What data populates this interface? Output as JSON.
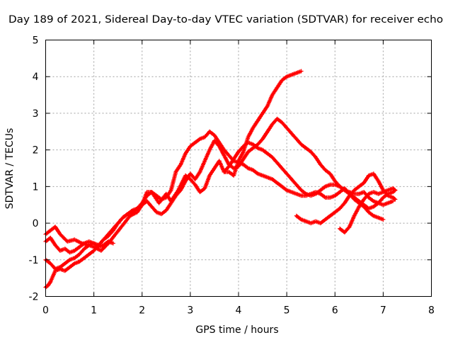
{
  "chart_data": {
    "type": "scatter",
    "title": "Day 189 of 2021, Sidereal Day-to-day VTEC variation (SDTVAR) for receiver echo",
    "xlabel": "GPS time / hours",
    "ylabel": "SDTVAR / TECUs",
    "xlim": [
      0,
      8
    ],
    "ylim": [
      -2,
      5
    ],
    "xticks": [
      "0",
      "1",
      "2",
      "3",
      "4",
      "5",
      "6",
      "7",
      "8"
    ],
    "yticks": [
      "-2",
      "-1",
      "0",
      "1",
      "2",
      "3",
      "4",
      "5"
    ],
    "grid": true,
    "marker": "plus",
    "color": "#ff0000",
    "series": [
      {
        "x": [
          0.0,
          0.1,
          0.2,
          0.3,
          0.45,
          0.6,
          0.75,
          0.9,
          1.0,
          1.15,
          1.3,
          1.45,
          1.6,
          1.75,
          1.9,
          2.0,
          2.1,
          2.2,
          2.35,
          2.5,
          2.6,
          2.75,
          2.9,
          3.0,
          3.1,
          3.2,
          3.3,
          3.4,
          3.5,
          3.6,
          3.7,
          3.8,
          3.9,
          4.0,
          4.1,
          4.2,
          4.3,
          4.4,
          4.5,
          4.6,
          4.7,
          4.8,
          4.9,
          5.0,
          5.1,
          5.2,
          5.3
        ],
        "y": [
          -0.3,
          -0.2,
          -0.1,
          -0.3,
          -0.5,
          -0.45,
          -0.55,
          -0.6,
          -0.65,
          -0.75,
          -0.55,
          -0.3,
          -0.05,
          0.2,
          0.3,
          0.5,
          0.85,
          0.85,
          0.55,
          0.8,
          0.6,
          0.9,
          1.3,
          1.2,
          1.05,
          0.85,
          0.95,
          1.3,
          1.5,
          1.7,
          1.4,
          1.4,
          1.3,
          1.7,
          1.95,
          2.35,
          2.6,
          2.8,
          3.0,
          3.2,
          3.5,
          3.7,
          3.9,
          4.0,
          4.05,
          4.1,
          4.15
        ]
      },
      {
        "x": [
          0.0,
          0.05,
          0.1,
          0.2,
          0.3,
          0.4,
          0.5,
          0.6,
          0.7,
          0.8,
          0.9,
          1.0,
          1.1,
          1.2,
          1.3,
          1.4,
          1.5,
          1.6,
          1.7,
          1.8,
          1.9,
          2.0,
          2.1,
          2.2,
          2.3,
          2.4,
          2.5,
          2.6,
          2.7,
          2.8,
          2.9,
          3.0,
          3.1,
          3.2,
          3.3,
          3.4,
          3.5,
          3.6,
          3.7,
          3.8,
          3.9,
          4.0,
          4.1,
          4.2,
          4.3,
          4.4,
          4.5,
          4.6,
          4.7,
          4.8,
          4.9,
          5.0,
          5.1,
          5.2,
          5.3,
          5.4,
          5.5,
          5.6,
          5.7,
          5.8,
          5.9,
          6.0,
          6.1,
          6.2,
          6.3,
          6.4,
          6.5,
          6.6,
          6.7,
          6.8,
          6.9,
          7.0
        ],
        "y": [
          -1.75,
          -1.7,
          -1.6,
          -1.3,
          -1.25,
          -1.3,
          -1.2,
          -1.1,
          -1.05,
          -0.95,
          -0.85,
          -0.75,
          -0.6,
          -0.45,
          -0.3,
          -0.15,
          0.0,
          0.15,
          0.25,
          0.3,
          0.4,
          0.55,
          0.75,
          0.85,
          0.75,
          0.65,
          0.7,
          0.9,
          1.4,
          1.6,
          1.9,
          2.1,
          2.2,
          2.3,
          2.35,
          2.5,
          2.4,
          2.2,
          2.0,
          1.85,
          1.7,
          1.65,
          1.6,
          1.5,
          1.45,
          1.35,
          1.3,
          1.25,
          1.2,
          1.1,
          1.0,
          0.9,
          0.85,
          0.8,
          0.75,
          0.75,
          0.8,
          0.85,
          0.8,
          0.7,
          0.7,
          0.75,
          0.85,
          0.95,
          0.8,
          0.65,
          0.55,
          0.45,
          0.3,
          0.2,
          0.15,
          0.1
        ]
      },
      {
        "x": [
          0.0,
          0.1,
          0.2,
          0.3,
          0.4,
          0.5,
          0.6,
          0.7,
          0.8,
          0.9,
          1.0,
          1.1,
          1.2,
          1.3,
          1.4,
          1.5,
          1.6,
          1.7,
          1.8,
          1.9,
          2.0,
          2.1,
          2.2,
          2.3,
          2.4,
          2.5,
          2.6,
          2.7,
          2.8,
          2.9,
          3.0,
          3.1,
          3.2,
          3.3,
          3.4,
          3.5,
          3.6,
          3.7,
          3.8,
          3.9,
          4.0,
          4.1,
          4.2,
          4.3,
          4.4,
          4.5,
          4.6,
          4.7,
          4.8,
          4.9,
          5.0,
          5.1,
          5.2,
          5.3,
          5.4,
          5.5,
          5.6,
          5.7,
          5.8,
          5.9,
          6.0,
          6.1,
          6.2,
          6.3,
          6.4,
          6.5,
          6.6,
          6.7,
          6.8,
          6.9,
          7.0,
          7.1,
          7.2
        ],
        "y": [
          -0.5,
          -0.4,
          -0.6,
          -0.75,
          -0.7,
          -0.8,
          -0.75,
          -0.65,
          -0.55,
          -0.5,
          -0.55,
          -0.6,
          -0.45,
          -0.35,
          -0.2,
          0.0,
          0.15,
          0.25,
          0.35,
          0.4,
          0.5,
          0.6,
          0.45,
          0.3,
          0.25,
          0.35,
          0.55,
          0.75,
          0.9,
          1.15,
          1.35,
          1.2,
          1.4,
          1.7,
          2.0,
          2.25,
          2.1,
          1.85,
          1.6,
          1.5,
          1.55,
          1.75,
          1.95,
          2.05,
          2.15,
          2.3,
          2.5,
          2.7,
          2.85,
          2.75,
          2.6,
          2.45,
          2.3,
          2.15,
          2.05,
          1.95,
          1.8,
          1.6,
          1.45,
          1.35,
          1.15,
          1.0,
          0.9,
          0.85,
          0.8,
          0.8,
          0.85,
          0.7,
          0.6,
          0.55,
          0.5,
          0.55,
          0.6
        ]
      },
      {
        "x": [
          0.0,
          0.1,
          0.2,
          0.3,
          0.4,
          0.5,
          0.6,
          0.7,
          0.8,
          0.9,
          1.0,
          1.1,
          1.2,
          1.3,
          1.4
        ],
        "y": [
          -1.0,
          -1.1,
          -1.25,
          -1.2,
          -1.1,
          -1.0,
          -0.95,
          -0.85,
          -0.7,
          -0.6,
          -0.55,
          -0.65,
          -0.6,
          -0.5,
          -0.55
        ]
      },
      {
        "x": [
          3.7,
          3.8,
          3.9,
          4.0,
          4.1,
          4.2,
          4.3,
          4.4,
          4.5,
          4.6,
          4.7,
          4.8,
          4.9,
          5.0,
          5.1,
          5.2,
          5.3,
          5.4,
          5.5,
          5.6,
          5.7,
          5.8,
          5.9,
          6.0,
          6.1,
          6.2,
          6.3,
          6.4,
          6.5,
          6.6,
          6.7,
          6.8,
          6.9,
          7.0,
          7.1,
          7.2,
          7.25
        ],
        "y": [
          1.4,
          1.55,
          1.75,
          1.95,
          2.1,
          2.2,
          2.15,
          2.05,
          2.0,
          1.9,
          1.8,
          1.65,
          1.5,
          1.35,
          1.2,
          1.05,
          0.9,
          0.8,
          0.75,
          0.8,
          0.9,
          1.0,
          1.05,
          1.05,
          1.0,
          0.9,
          0.8,
          0.7,
          0.6,
          0.5,
          0.4,
          0.45,
          0.55,
          0.7,
          0.8,
          0.85,
          0.9
        ]
      },
      {
        "x": [
          5.2,
          5.3,
          5.4,
          5.5,
          5.6,
          5.7,
          5.8,
          5.9,
          6.0,
          6.1,
          6.2,
          6.3,
          6.4,
          6.5,
          6.6,
          6.7,
          6.8,
          6.9,
          7.0,
          7.1,
          7.2,
          7.25
        ],
        "y": [
          0.2,
          0.1,
          0.05,
          0.0,
          0.05,
          0.0,
          0.1,
          0.2,
          0.3,
          0.4,
          0.55,
          0.75,
          0.9,
          1.0,
          1.1,
          1.3,
          1.35,
          1.15,
          0.9,
          0.75,
          0.7,
          0.65
        ]
      },
      {
        "x": [
          6.1,
          6.2,
          6.3,
          6.4,
          6.5,
          6.6,
          6.7,
          6.8,
          6.9,
          7.0,
          7.1,
          7.2,
          7.25
        ],
        "y": [
          -0.15,
          -0.25,
          -0.1,
          0.2,
          0.45,
          0.65,
          0.8,
          0.85,
          0.8,
          0.85,
          0.9,
          0.95,
          0.9
        ]
      }
    ]
  }
}
